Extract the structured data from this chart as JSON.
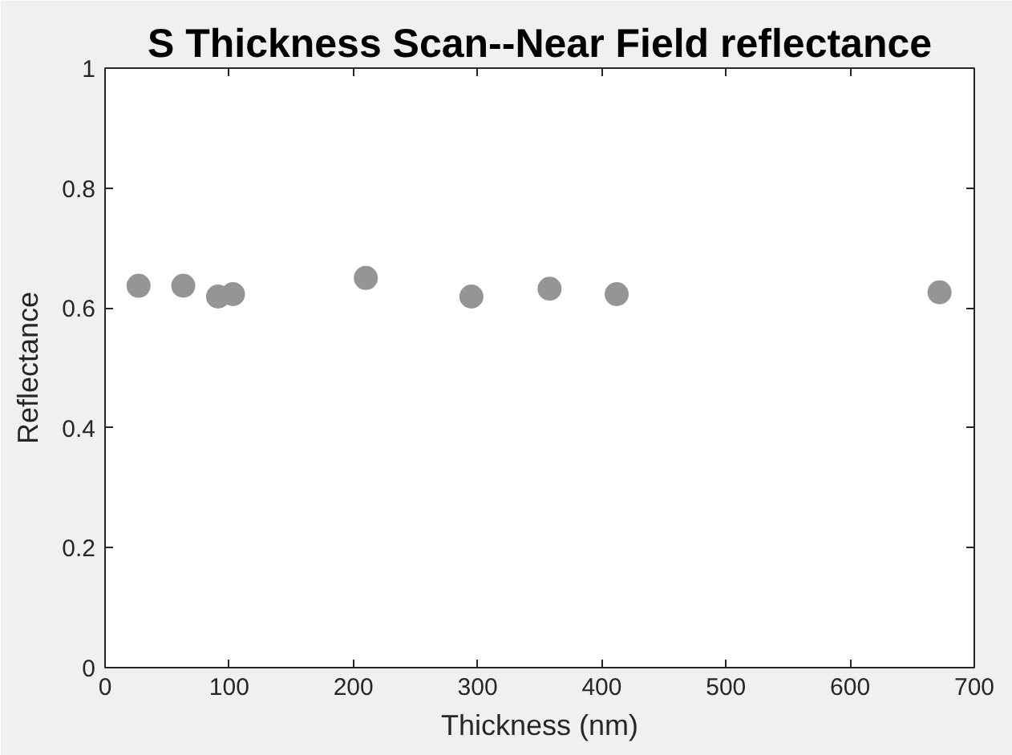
{
  "chart_data": {
    "type": "scatter",
    "title": "S Thickness Scan--Near Field reflectance",
    "xlabel": "Thickness (nm)",
    "ylabel": "Reflectance",
    "x": [
      27,
      63,
      91,
      103,
      210,
      295,
      358,
      412,
      672
    ],
    "values": [
      0.637,
      0.637,
      0.619,
      0.623,
      0.65,
      0.619,
      0.632,
      0.623,
      0.626
    ],
    "color": "#959595",
    "marker": "circle",
    "xlim": [
      0,
      700
    ],
    "ylim": [
      0,
      1
    ],
    "xticks": [
      0,
      100,
      200,
      300,
      400,
      500,
      600,
      700
    ],
    "yticks": [
      0,
      0.2,
      0.4,
      0.6,
      0.8,
      1
    ],
    "grid": false
  }
}
